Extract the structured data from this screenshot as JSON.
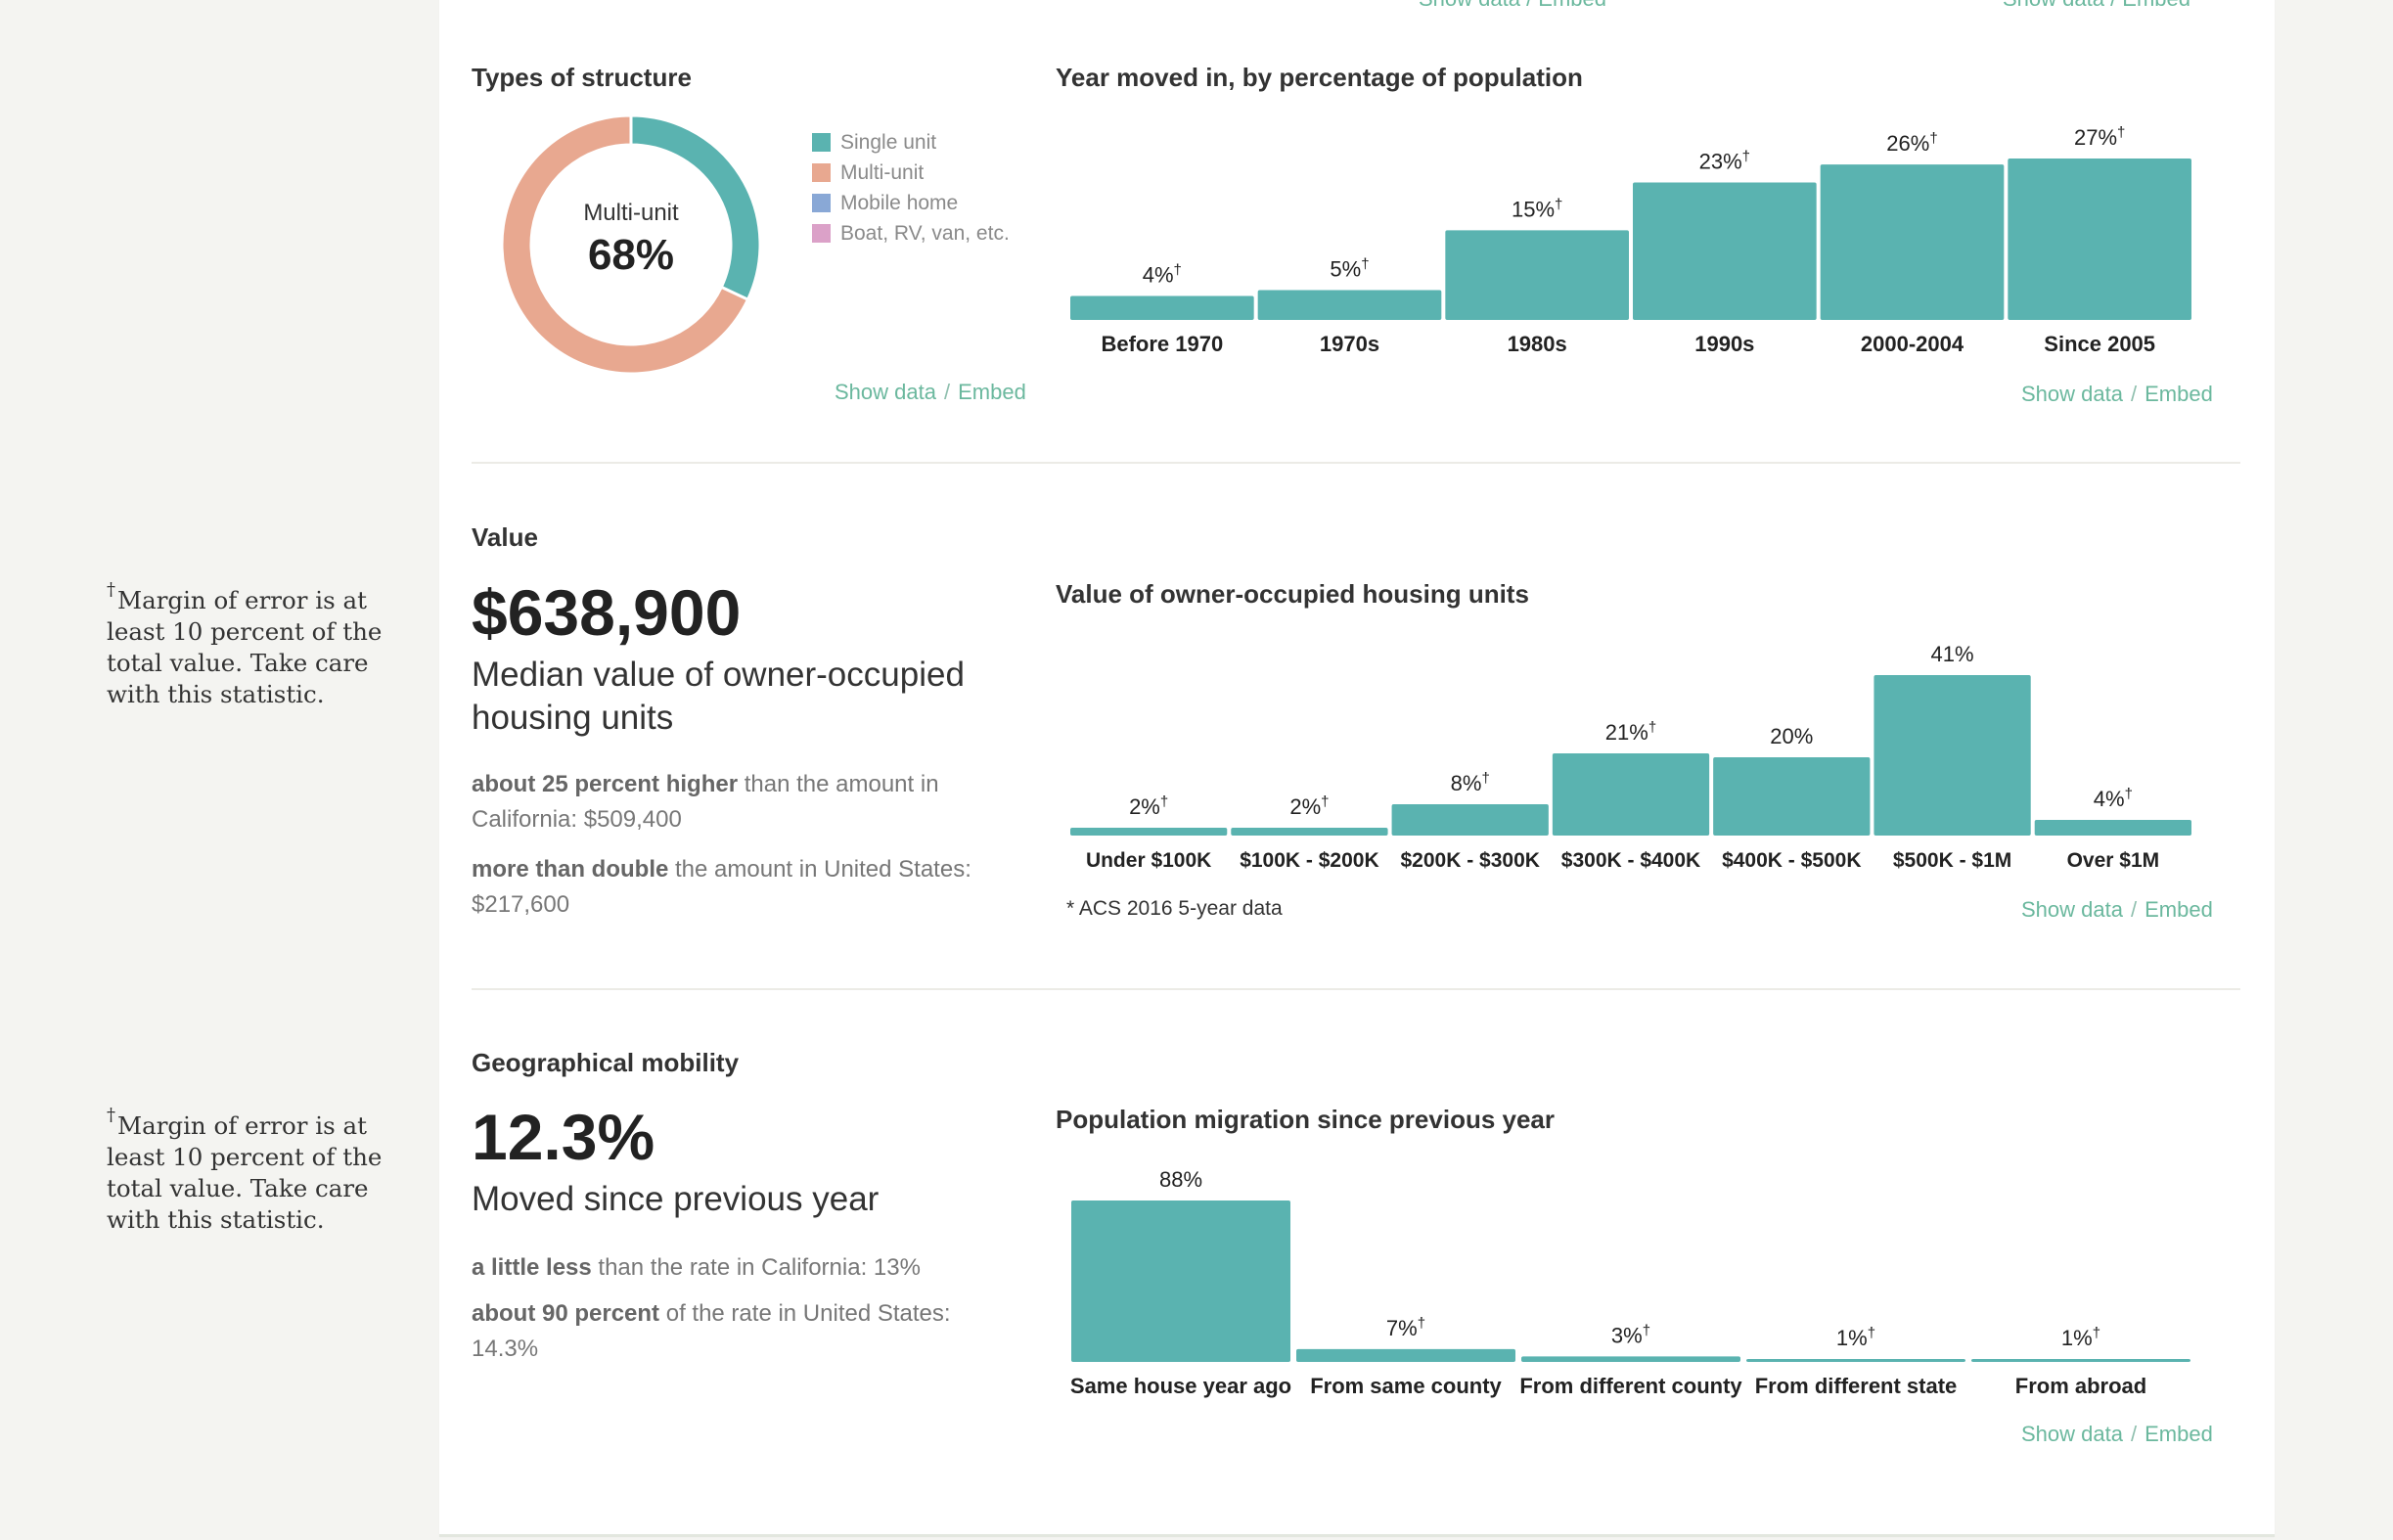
{
  "notes": {
    "dagger": "†",
    "text": "Margin of error is at least 10 percent of the total value. Take care with this statistic."
  },
  "links": {
    "show_data": "Show data",
    "sep": "/",
    "embed": "Embed"
  },
  "top_cut_links": {
    "text": "Show data / Embed"
  },
  "structure": {
    "heading": "Types of structure",
    "center_label": "Multi-unit",
    "center_value": "68%",
    "legend": [
      {
        "label": "Single unit",
        "color": "#5ab3b0"
      },
      {
        "label": "Multi-unit",
        "color": "#e8a890"
      },
      {
        "label": "Mobile home",
        "color": "#89a8d6"
      },
      {
        "label": "Boat, RV, van, etc.",
        "color": "#dba1c8"
      }
    ]
  },
  "value": {
    "heading": "Value",
    "big_number": "$638,900",
    "description": "Median value of owner-occupied housing units",
    "comparisons": [
      {
        "bold": "about 25 percent higher",
        "rest": " than the amount in California: $509,400"
      },
      {
        "bold": "more than double",
        "rest": " the amount in United States: $217,600"
      }
    ],
    "footnote": "* ACS 2016 5-year data"
  },
  "mobility": {
    "heading": "Geographical mobility",
    "big_number": "12.3%",
    "description": "Moved since previous year",
    "comparisons": [
      {
        "bold": "a little less",
        "rest": " than the rate in California: 13%"
      },
      {
        "bold": "about 90 percent",
        "rest": " of the rate in United States: 14.3%"
      }
    ]
  },
  "chart_data": [
    {
      "type": "pie",
      "title": "Types of structure",
      "categories": [
        "Single unit",
        "Multi-unit",
        "Mobile home",
        "Boat, RV, van, etc."
      ],
      "values": [
        32,
        68,
        0,
        0
      ],
      "legend": "right"
    },
    {
      "type": "bar",
      "title": "Year moved in, by percentage of population",
      "categories": [
        "Before 1970",
        "1970s",
        "1980s",
        "1990s",
        "2000-2004",
        "Since 2005"
      ],
      "values": [
        4,
        5,
        15,
        23,
        26,
        27
      ],
      "data_labels": [
        "4%",
        "5%",
        "15%",
        "23%",
        "26%",
        "27%"
      ],
      "moe_flag": [
        true,
        true,
        true,
        true,
        true,
        true
      ],
      "ylim": [
        0,
        27
      ]
    },
    {
      "type": "bar",
      "title": "Value of owner-occupied housing units",
      "categories": [
        "Under $100K",
        "$100K - $200K",
        "$200K - $300K",
        "$300K - $400K",
        "$400K - $500K",
        "$500K - $1M",
        "Over $1M"
      ],
      "values": [
        2,
        2,
        8,
        21,
        20,
        41,
        4
      ],
      "data_labels": [
        "2%",
        "2%",
        "8%",
        "21%",
        "20%",
        "41%",
        "4%"
      ],
      "moe_flag": [
        true,
        true,
        true,
        true,
        false,
        false,
        true
      ],
      "ylim": [
        0,
        41
      ]
    },
    {
      "type": "bar",
      "title": "Population migration since previous year",
      "categories": [
        "Same house year ago",
        "From same county",
        "From different county",
        "From different state",
        "From abroad"
      ],
      "values": [
        88,
        7,
        3,
        1,
        1
      ],
      "data_labels": [
        "88%",
        "7%",
        "3%",
        "1%",
        "1%"
      ],
      "moe_flag": [
        false,
        true,
        true,
        true,
        true
      ],
      "ylim": [
        0,
        88
      ]
    }
  ]
}
